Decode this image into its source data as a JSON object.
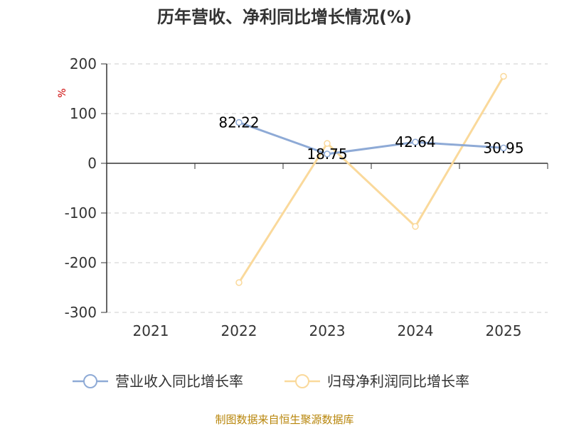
{
  "chart_data": {
    "type": "line",
    "title": "历年营收、净利同比增长情况(%)",
    "ylabel": "%",
    "categories": [
      "2021",
      "2022",
      "2023",
      "2024",
      "2025"
    ],
    "yticks": [
      "200",
      "100",
      "0",
      "-100",
      "-200",
      "-300"
    ],
    "ylim": [
      -300,
      200
    ],
    "grid": true,
    "legend_position": "bottom",
    "series": [
      {
        "name": "营业收入同比增长率",
        "color": "#8eaad6",
        "values": [
          null,
          82.22,
          18.75,
          42.64,
          30.95
        ],
        "labels": [
          "",
          "82.22",
          "18.75",
          "42.64",
          "30.95"
        ]
      },
      {
        "name": "归母净利润同比增长率",
        "color": "#fad99b",
        "values": [
          null,
          -240,
          40,
          -127,
          175
        ]
      }
    ]
  },
  "source": "制图数据来自恒生聚源数据库"
}
